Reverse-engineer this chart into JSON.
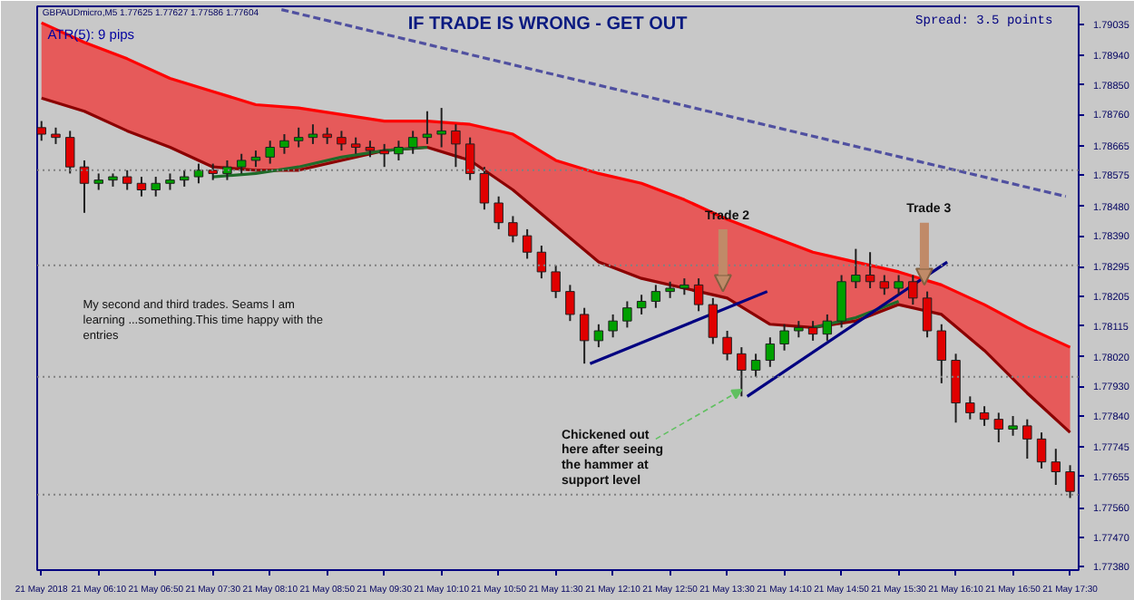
{
  "chart_data": {
    "type": "candlestick",
    "title": "IF TRADE IS WRONG - GET OUT",
    "x": [
      "2018-05-21T05:30",
      "2018-05-21T05:40",
      "2018-05-21T05:50",
      "2018-05-21T06:00",
      "2018-05-21T06:10",
      "2018-05-21T06:20",
      "2018-05-21T06:30",
      "2018-05-21T06:40",
      "2018-05-21T06:50",
      "2018-05-21T07:00",
      "2018-05-21T07:10",
      "2018-05-21T07:20",
      "2018-05-21T07:30",
      "2018-05-21T07:40",
      "2018-05-21T07:50",
      "2018-05-21T08:00",
      "2018-05-21T08:10",
      "2018-05-21T08:20",
      "2018-05-21T08:30",
      "2018-05-21T08:40",
      "2018-05-21T08:50",
      "2018-05-21T09:00",
      "2018-05-21T09:10",
      "2018-05-21T09:20",
      "2018-05-21T09:30",
      "2018-05-21T09:40",
      "2018-05-21T09:50",
      "2018-05-21T10:00",
      "2018-05-21T10:10",
      "2018-05-21T10:20",
      "2018-05-21T10:30",
      "2018-05-21T10:40",
      "2018-05-21T10:50",
      "2018-05-21T11:00",
      "2018-05-21T11:10",
      "2018-05-21T11:20",
      "2018-05-21T11:30",
      "2018-05-21T11:40",
      "2018-05-21T11:50",
      "2018-05-21T12:00",
      "2018-05-21T12:10",
      "2018-05-21T12:20",
      "2018-05-21T12:30",
      "2018-05-21T12:40",
      "2018-05-21T12:50",
      "2018-05-21T13:00",
      "2018-05-21T13:10",
      "2018-05-21T13:20",
      "2018-05-21T13:30",
      "2018-05-21T13:40",
      "2018-05-21T13:50",
      "2018-05-21T14:00",
      "2018-05-21T14:10",
      "2018-05-21T14:20",
      "2018-05-21T14:30",
      "2018-05-21T14:40",
      "2018-05-21T14:50",
      "2018-05-21T15:00",
      "2018-05-21T15:10",
      "2018-05-21T15:20",
      "2018-05-21T15:30",
      "2018-05-21T15:40",
      "2018-05-21T15:50",
      "2018-05-21T16:00",
      "2018-05-21T16:10",
      "2018-05-21T16:20",
      "2018-05-21T16:30",
      "2018-05-21T16:40",
      "2018-05-21T16:50",
      "2018-05-21T17:00",
      "2018-05-21T17:10",
      "2018-05-21T17:20",
      "2018-05-21T17:30"
    ],
    "ohlc": [
      [
        1.7872,
        1.7874,
        1.7868,
        1.787
      ],
      [
        1.787,
        1.7872,
        1.7867,
        1.7869
      ],
      [
        1.7869,
        1.7871,
        1.7858,
        1.786
      ],
      [
        1.786,
        1.7862,
        1.7846,
        1.7855
      ],
      [
        1.7855,
        1.7858,
        1.7853,
        1.7856
      ],
      [
        1.7856,
        1.7858,
        1.7854,
        1.7857
      ],
      [
        1.7857,
        1.7859,
        1.7853,
        1.7855
      ],
      [
        1.7855,
        1.7857,
        1.7851,
        1.7853
      ],
      [
        1.7853,
        1.7857,
        1.7851,
        1.7855
      ],
      [
        1.7855,
        1.7858,
        1.7853,
        1.7856
      ],
      [
        1.7856,
        1.7859,
        1.7854,
        1.7857
      ],
      [
        1.7857,
        1.7861,
        1.7855,
        1.7859
      ],
      [
        1.7859,
        1.7861,
        1.7856,
        1.7858
      ],
      [
        1.7858,
        1.7862,
        1.7856,
        1.786
      ],
      [
        1.786,
        1.7864,
        1.7858,
        1.7862
      ],
      [
        1.7862,
        1.7865,
        1.786,
        1.7863
      ],
      [
        1.7863,
        1.7868,
        1.7861,
        1.7866
      ],
      [
        1.7866,
        1.787,
        1.7864,
        1.7868
      ],
      [
        1.7868,
        1.7872,
        1.7866,
        1.7869
      ],
      [
        1.7869,
        1.7873,
        1.7867,
        1.787
      ],
      [
        1.787,
        1.7872,
        1.7867,
        1.7869
      ],
      [
        1.7869,
        1.7871,
        1.7865,
        1.7867
      ],
      [
        1.7867,
        1.7869,
        1.7864,
        1.7866
      ],
      [
        1.7866,
        1.7868,
        1.7863,
        1.7865
      ],
      [
        1.7865,
        1.7867,
        1.786,
        1.7864
      ],
      [
        1.7864,
        1.7868,
        1.7862,
        1.7866
      ],
      [
        1.7866,
        1.7871,
        1.7864,
        1.7869
      ],
      [
        1.7869,
        1.7877,
        1.7867,
        1.787
      ],
      [
        1.787,
        1.7878,
        1.7866,
        1.7871
      ],
      [
        1.7871,
        1.7873,
        1.786,
        1.7867
      ],
      [
        1.7867,
        1.7869,
        1.7856,
        1.7858
      ],
      [
        1.7858,
        1.786,
        1.7847,
        1.7849
      ],
      [
        1.7849,
        1.7851,
        1.7841,
        1.7843
      ],
      [
        1.7843,
        1.7845,
        1.7837,
        1.7839
      ],
      [
        1.7839,
        1.7841,
        1.7832,
        1.7834
      ],
      [
        1.7834,
        1.7836,
        1.7826,
        1.7828
      ],
      [
        1.7828,
        1.783,
        1.782,
        1.7822
      ],
      [
        1.7822,
        1.7824,
        1.7813,
        1.7815
      ],
      [
        1.7815,
        1.7817,
        1.78,
        1.7807
      ],
      [
        1.7807,
        1.7812,
        1.7805,
        1.781
      ],
      [
        1.781,
        1.7815,
        1.7808,
        1.7813
      ],
      [
        1.7813,
        1.7819,
        1.7811,
        1.7817
      ],
      [
        1.7817,
        1.7821,
        1.7815,
        1.7819
      ],
      [
        1.7819,
        1.7824,
        1.7817,
        1.7822
      ],
      [
        1.7822,
        1.7825,
        1.782,
        1.7823
      ],
      [
        1.7823,
        1.7826,
        1.7821,
        1.7824
      ],
      [
        1.7824,
        1.7826,
        1.7816,
        1.7818
      ],
      [
        1.7818,
        1.782,
        1.7806,
        1.7808
      ],
      [
        1.7808,
        1.781,
        1.7801,
        1.7803
      ],
      [
        1.7803,
        1.7805,
        1.779,
        1.7798
      ],
      [
        1.7798,
        1.7803,
        1.7796,
        1.7801
      ],
      [
        1.7801,
        1.7808,
        1.7799,
        1.7806
      ],
      [
        1.7806,
        1.7812,
        1.7804,
        1.781
      ],
      [
        1.781,
        1.7813,
        1.7808,
        1.7811
      ],
      [
        1.7811,
        1.7813,
        1.7807,
        1.7809
      ],
      [
        1.7809,
        1.7815,
        1.7807,
        1.7813
      ],
      [
        1.7813,
        1.7827,
        1.7811,
        1.7825
      ],
      [
        1.7825,
        1.7835,
        1.7823,
        1.7827
      ],
      [
        1.7827,
        1.7834,
        1.7823,
        1.7825
      ],
      [
        1.7825,
        1.7827,
        1.7821,
        1.7823
      ],
      [
        1.7823,
        1.7827,
        1.7821,
        1.7825
      ],
      [
        1.7825,
        1.7827,
        1.7818,
        1.782
      ],
      [
        1.782,
        1.7822,
        1.7808,
        1.781
      ],
      [
        1.781,
        1.7812,
        1.7794,
        1.7801
      ],
      [
        1.7801,
        1.7803,
        1.7782,
        1.7788
      ],
      [
        1.7788,
        1.779,
        1.7783,
        1.7785
      ],
      [
        1.7785,
        1.7787,
        1.7781,
        1.7783
      ],
      [
        1.7783,
        1.7785,
        1.7776,
        1.778
      ],
      [
        1.778,
        1.7784,
        1.7778,
        1.7781
      ],
      [
        1.7781,
        1.7783,
        1.7771,
        1.7777
      ],
      [
        1.7777,
        1.7779,
        1.7768,
        1.777
      ],
      [
        1.777,
        1.7774,
        1.7763,
        1.7767
      ],
      [
        1.7767,
        1.7769,
        1.7759,
        1.7761
      ]
    ],
    "colors": [
      "#e00000",
      "#e00000",
      "#e00000",
      "#e00000",
      "#00a000",
      "#00a000",
      "#e00000",
      "#e00000",
      "#00a000",
      "#00a000",
      "#00a000",
      "#00a000",
      "#e00000",
      "#00a000",
      "#00a000",
      "#00a000",
      "#00a000",
      "#00a000",
      "#00a000",
      "#00a000",
      "#e00000",
      "#e00000",
      "#e00000",
      "#e00000",
      "#e00000",
      "#00a000",
      "#00a000",
      "#00a000",
      "#00a000",
      "#e00000",
      "#e00000",
      "#e00000",
      "#e00000",
      "#e00000",
      "#e00000",
      "#e00000",
      "#e00000",
      "#e00000",
      "#e00000",
      "#00a000",
      "#00a000",
      "#00a000",
      "#00a000",
      "#00a000",
      "#00a000",
      "#00a000",
      "#e00000",
      "#e00000",
      "#e00000",
      "#e00000",
      "#00a000",
      "#00a000",
      "#00a000",
      "#00a000",
      "#e00000",
      "#00a000",
      "#00a000",
      "#00a000",
      "#e00000",
      "#e00000",
      "#00a000",
      "#e00000",
      "#e00000",
      "#e00000",
      "#e00000",
      "#e00000",
      "#e00000",
      "#e00000",
      "#00a000",
      "#e00000",
      "#e00000",
      "#e00000",
      "#e00000"
    ],
    "series": [
      {
        "type": "line",
        "color": "#ff0000",
        "x": [
          "2018-05-21T05:30",
          "2018-05-21T06:00",
          "2018-05-21T06:30",
          "2018-05-21T07:00",
          "2018-05-21T07:30",
          "2018-05-21T08:00",
          "2018-05-21T08:30",
          "2018-05-21T09:00",
          "2018-05-21T09:30",
          "2018-05-21T10:00",
          "2018-05-21T10:30",
          "2018-05-21T11:00",
          "2018-05-21T11:30",
          "2018-05-21T12:00",
          "2018-05-21T12:30",
          "2018-05-21T13:00",
          "2018-05-21T13:30",
          "2018-05-21T14:00",
          "2018-05-21T14:30",
          "2018-05-21T15:00",
          "2018-05-21T15:30",
          "2018-05-21T16:00",
          "2018-05-21T16:30",
          "2018-05-21T17:00",
          "2018-05-21T17:30"
        ],
        "values": [
          1.7904,
          1.7898,
          1.7893,
          1.7887,
          1.7883,
          1.7879,
          1.7878,
          1.7876,
          1.7874,
          1.7874,
          1.7873,
          1.787,
          1.7862,
          1.7858,
          1.7855,
          1.785,
          1.7844,
          1.7839,
          1.7834,
          1.7831,
          1.7828,
          1.7824,
          1.7818,
          1.7811,
          1.7805
        ],
        "lower": [
          1.7881,
          1.7877,
          1.7871,
          1.7866,
          1.786,
          1.7859,
          1.7859,
          1.7862,
          1.7865,
          1.7866,
          1.7862,
          1.7853,
          1.7842,
          1.7831,
          1.7826,
          1.7823,
          1.782,
          1.7812,
          1.7811,
          1.7813,
          1.7818,
          1.7815,
          1.7804,
          1.7791,
          1.7779
        ],
        "upper": [
          1.7904,
          1.7898,
          1.7893,
          1.7887,
          1.7883,
          1.7879,
          1.7878,
          1.7876,
          1.7874,
          1.7874,
          1.7873,
          1.787,
          1.7862,
          1.7858,
          1.7855,
          1.785,
          1.7844,
          1.7839,
          1.7834,
          1.7831,
          1.7828,
          1.7824,
          1.7818,
          1.7811,
          1.7805
        ]
      },
      {
        "type": "line",
        "color": "#8b0000",
        "x": [
          "2018-05-21T05:30",
          "2018-05-21T06:00",
          "2018-05-21T06:30",
          "2018-05-21T07:00",
          "2018-05-21T07:30",
          "2018-05-21T08:00",
          "2018-05-21T08:30",
          "2018-05-21T09:00",
          "2018-05-21T09:30",
          "2018-05-21T10:00",
          "2018-05-21T10:30",
          "2018-05-21T11:00",
          "2018-05-21T11:30",
          "2018-05-21T12:00",
          "2018-05-21T12:30",
          "2018-05-21T13:00",
          "2018-05-21T13:30",
          "2018-05-21T14:00",
          "2018-05-21T14:30",
          "2018-05-21T15:00",
          "2018-05-21T15:30",
          "2018-05-21T16:00",
          "2018-05-21T16:30",
          "2018-05-21T17:00",
          "2018-05-21T17:30"
        ],
        "values": [
          1.7881,
          1.7877,
          1.7871,
          1.7866,
          1.786,
          1.7859,
          1.7859,
          1.7862,
          1.7865,
          1.7866,
          1.7862,
          1.7853,
          1.7842,
          1.7831,
          1.7826,
          1.7823,
          1.782,
          1.7812,
          1.7811,
          1.7813,
          1.7818,
          1.7815,
          1.7804,
          1.7791,
          1.7779
        ]
      },
      {
        "type": "line",
        "color": "#1f6b2a",
        "x": [
          "2018-05-21T07:30",
          "2018-05-21T08:00",
          "2018-05-21T08:30",
          "2018-05-21T09:00",
          "2018-05-21T09:30",
          "2018-05-21T10:00"
        ],
        "values": [
          1.7857,
          1.7858,
          1.786,
          1.7863,
          1.7865,
          1.7866
        ]
      },
      {
        "type": "line",
        "color": "#1f6b2a",
        "x": [
          "2018-05-21T14:30",
          "2018-05-21T15:00",
          "2018-05-21T15:30"
        ],
        "values": [
          1.7811,
          1.7814,
          1.7819
        ]
      },
      {
        "type": "line",
        "color": "#5050a0",
        "line_style": "dashed",
        "x": [
          "2018-05-21T08:18",
          "2018-05-21T17:27"
        ],
        "values": [
          1.7908,
          1.7851
        ]
      },
      {
        "type": "line",
        "color": "#000080",
        "x": [
          "2018-05-21T11:54",
          "2018-05-21T13:58"
        ],
        "values": [
          1.78,
          1.7822
        ]
      },
      {
        "type": "line",
        "color": "#000080",
        "x": [
          "2018-05-21T13:44",
          "2018-05-21T16:04"
        ],
        "values": [
          1.779,
          1.7831
        ]
      }
    ],
    "xlim": [
      "2018-05-21T05:27",
      "2018-05-21T17:36"
    ],
    "ylim": [
      1.7737,
      1.7909
    ],
    "xticks": [
      {
        "value": "2018-05-21T05:30",
        "label": "21 May 2018"
      },
      {
        "value": "2018-05-21T06:10",
        "label": "21 May 06:10"
      },
      {
        "value": "2018-05-21T06:50",
        "label": "21 May 06:50"
      },
      {
        "value": "2018-05-21T07:30",
        "label": "21 May 07:30"
      },
      {
        "value": "2018-05-21T08:10",
        "label": "21 May 08:10"
      },
      {
        "value": "2018-05-21T08:50",
        "label": "21 May 08:50"
      },
      {
        "value": "2018-05-21T09:30",
        "label": "21 May 09:30"
      },
      {
        "value": "2018-05-21T10:10",
        "label": "21 May 10:10"
      },
      {
        "value": "2018-05-21T10:50",
        "label": "21 May 10:50"
      },
      {
        "value": "2018-05-21T11:30",
        "label": "21 May 11:30"
      },
      {
        "value": "2018-05-21T12:10",
        "label": "21 May 12:10"
      },
      {
        "value": "2018-05-21T12:50",
        "label": "21 May 12:50"
      },
      {
        "value": "2018-05-21T13:30",
        "label": "21 May 13:30"
      },
      {
        "value": "2018-05-21T14:10",
        "label": "21 May 14:10"
      },
      {
        "value": "2018-05-21T14:50",
        "label": "21 May 14:50"
      },
      {
        "value": "2018-05-21T15:30",
        "label": "21 May 15:30"
      },
      {
        "value": "2018-05-21T16:10",
        "label": "21 May 16:10"
      },
      {
        "value": "2018-05-21T16:50",
        "label": "21 May 16:50"
      },
      {
        "value": "2018-05-21T17:30",
        "label": "21 May 17:30"
      }
    ],
    "yticks": [
      {
        "value": 1.79035,
        "label": "1.79035"
      },
      {
        "value": 1.7894,
        "label": "1.78940"
      },
      {
        "value": 1.7885,
        "label": "1.78850"
      },
      {
        "value": 1.7876,
        "label": "1.78760"
      },
      {
        "value": 1.78665,
        "label": "1.78665"
      },
      {
        "value": 1.78575,
        "label": "1.78575"
      },
      {
        "value": 1.7848,
        "label": "1.78480"
      },
      {
        "value": 1.7839,
        "label": "1.78390"
      },
      {
        "value": 1.78295,
        "label": "1.78295"
      },
      {
        "value": 1.78205,
        "label": "1.78205"
      },
      {
        "value": 1.78115,
        "label": "1.78115"
      },
      {
        "value": 1.7802,
        "label": "1.78020"
      },
      {
        "value": 1.7793,
        "label": "1.77930"
      },
      {
        "value": 1.7784,
        "label": "1.77840"
      },
      {
        "value": 1.77745,
        "label": "1.77745"
      },
      {
        "value": 1.77655,
        "label": "1.77655"
      },
      {
        "value": 1.7756,
        "label": "1.77560"
      },
      {
        "value": 1.7747,
        "label": "1.77470"
      },
      {
        "value": 1.7738,
        "label": "1.77380"
      }
    ],
    "ref_lines": [
      {
        "axis": "y",
        "value": 1.7859,
        "color": "#808080",
        "line_style": "dotted"
      },
      {
        "axis": "y",
        "value": 1.783,
        "color": "#808080",
        "line_style": "dotted"
      },
      {
        "axis": "y",
        "value": 1.7796,
        "color": "#808080",
        "line_style": "dotted"
      },
      {
        "axis": "y",
        "value": 1.776,
        "color": "#808080",
        "line_style": "dotted"
      }
    ],
    "annotations": [
      "GBPAUDmicro,M5  1.77625 1.77627 1.77586 1.77604",
      "ATR(5): 9 pips",
      "Spread: 3.5 points",
      "My second and third trades. Seams I am\nlearning ...something.This time happy with the\nentries",
      {
        "text": "Trade 2",
        "x": "2018-05-21T13:27",
        "y": 1.7822
      },
      {
        "text": "Trade 3",
        "x": "2018-05-21T15:48",
        "y": 1.7824
      },
      {
        "text": "Chickened out\nhere after seeing\nthe hammer at\nsupport level",
        "x": "2018-05-21T13:40",
        "y": 1.7792
      }
    ]
  }
}
